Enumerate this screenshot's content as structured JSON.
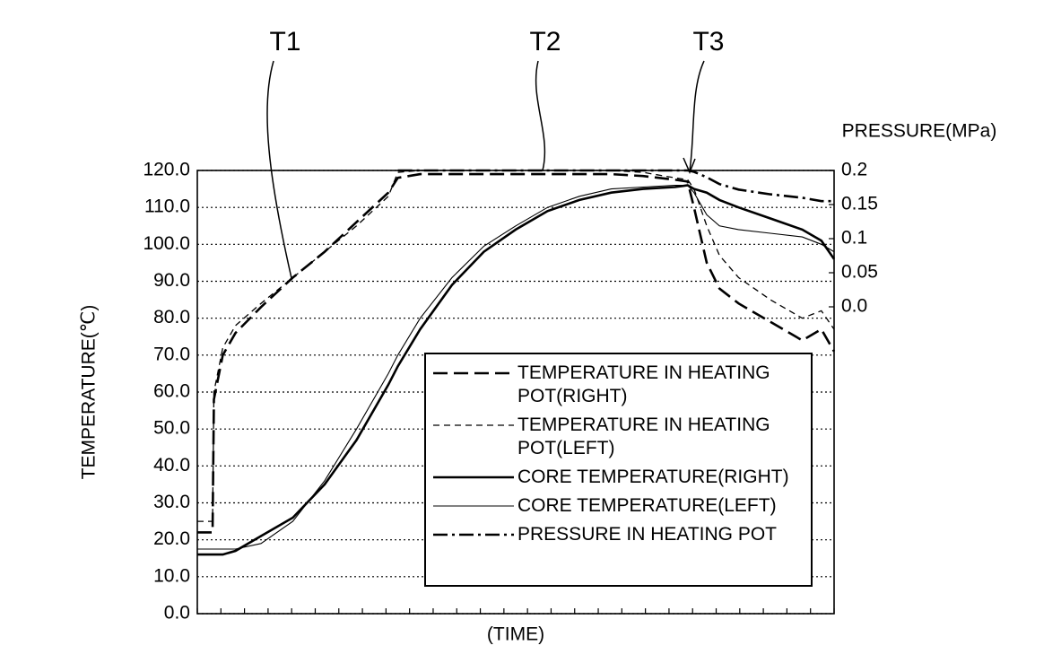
{
  "chart_data": {
    "type": "line",
    "annotations": [
      "T1",
      "T2",
      "T3"
    ],
    "xlabel": "(TIME)",
    "ylabel": "TEMPERATURE(℃)",
    "y2label": "PRESSURE(MPa)",
    "x": [
      0,
      2.4,
      2.6,
      4,
      6,
      10,
      15,
      20,
      25,
      30,
      31.5,
      35,
      40,
      45,
      50,
      55,
      60,
      65,
      70,
      75,
      77,
      78,
      80,
      82,
      85,
      90,
      95,
      98,
      100
    ],
    "xlim": [
      0,
      100
    ],
    "ylim": [
      0,
      120
    ],
    "yticks": [
      {
        "value": 0,
        "label": "0.0"
      },
      {
        "value": 10,
        "label": "10.0"
      },
      {
        "value": 20,
        "label": "20.0"
      },
      {
        "value": 30,
        "label": "30.0"
      },
      {
        "value": 40,
        "label": "40.0"
      },
      {
        "value": 50,
        "label": "50.0"
      },
      {
        "value": 60,
        "label": "60.0"
      },
      {
        "value": 70,
        "label": "70.0"
      },
      {
        "value": 80,
        "label": "80.0"
      },
      {
        "value": 90,
        "label": "90.0"
      },
      {
        "value": 100,
        "label": "100.0"
      },
      {
        "value": 110,
        "label": "110.0"
      },
      {
        "value": 120,
        "label": "120.0"
      }
    ],
    "y2lim": [
      -0.45,
      0.2
    ],
    "y2ticks": [
      0.2,
      0.15,
      0.1,
      0.05,
      {
        "value": 0,
        "label": "0.0"
      }
    ],
    "grid": true,
    "series": [
      {
        "name": "TEMPERATURE IN HEATING POT(RIGHT)",
        "color": "#000",
        "dash": "16,7",
        "width": 2.6,
        "values": [
          22,
          22,
          58,
          70,
          76,
          83,
          91,
          98,
          106,
          114,
          118,
          119,
          119,
          119,
          119,
          119,
          119,
          119,
          118.5,
          117.5,
          117,
          110,
          95,
          88,
          84,
          79,
          74,
          77,
          71
        ]
      },
      {
        "name": "TEMPERATURE IN HEATING POT(LEFT)",
        "color": "#000",
        "dash": "7,5",
        "width": 1.3,
        "values": [
          25,
          25,
          60,
          72,
          78,
          84,
          91,
          98,
          105,
          113,
          119.5,
          120,
          120,
          120,
          120,
          120,
          120,
          120,
          119.5,
          118,
          117.5,
          115,
          105,
          97,
          91,
          85,
          80,
          82,
          77
        ]
      },
      {
        "name": "CORE TEMPERATURE(RIGHT)",
        "color": "#000",
        "dash": "none",
        "width": 2.6,
        "values": [
          16,
          16,
          16,
          16,
          17,
          21,
          26,
          35,
          47,
          62,
          67,
          77,
          89,
          98,
          104,
          109,
          112,
          114,
          115,
          115.5,
          116,
          115,
          114,
          112,
          110,
          107,
          104,
          101,
          96
        ]
      },
      {
        "name": "CORE TEMPERATURE(LEFT)",
        "color": "#000",
        "dash": "none",
        "width": 1.1,
        "values": [
          17.5,
          17.5,
          17.5,
          17.5,
          17.5,
          19,
          25,
          36,
          50,
          65,
          70,
          80,
          91,
          99.5,
          105,
          110,
          113,
          115,
          115.5,
          116,
          116,
          114,
          108,
          105,
          104,
          103,
          102,
          100,
          98
        ]
      },
      {
        "name": "PRESSURE IN HEATING POT",
        "color": "#000",
        "dash": "16,5,3,5",
        "width": 2.6,
        "axis": "y2",
        "values": [
          null,
          null,
          null,
          null,
          null,
          null,
          null,
          null,
          null,
          null,
          0.2,
          0.2,
          0.2,
          0.2,
          0.2,
          0.2,
          0.2,
          0.2,
          0.2,
          0.2,
          0.2,
          0.198,
          0.19,
          0.18,
          0.172,
          0.165,
          0.16,
          0.155,
          0.155
        ]
      }
    ]
  }
}
